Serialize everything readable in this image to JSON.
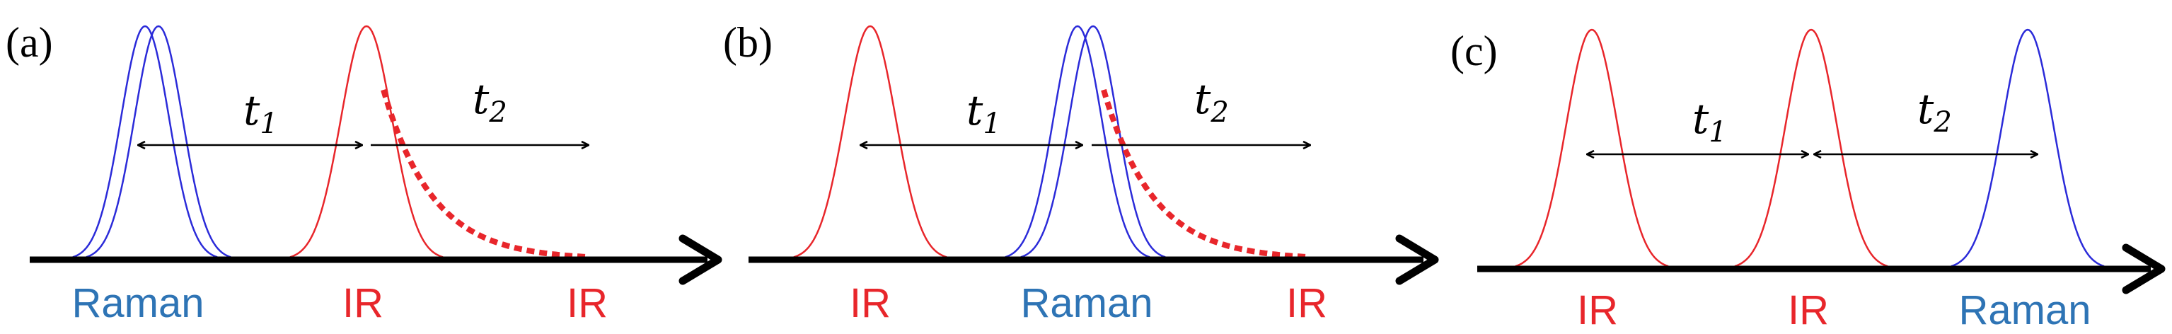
{
  "colors": {
    "raman": "#2b2bd9",
    "ir": "#e8262b",
    "raman_text": "#2e74b5",
    "ir_text": "#e8262b",
    "axis": "#000000"
  },
  "panels": [
    {
      "label": "(a)",
      "t1": {
        "main": "t",
        "sub": "1"
      },
      "t2": {
        "main": "t",
        "sub": "2"
      },
      "pulse_labels": [
        {
          "text": "Raman",
          "color": "raman_text"
        },
        {
          "text": "IR",
          "color": "ir_text"
        },
        {
          "text": "IR",
          "color": "ir_text"
        }
      ]
    },
    {
      "label": "(b)",
      "t1": {
        "main": "t",
        "sub": "1"
      },
      "t2": {
        "main": "t",
        "sub": "2"
      },
      "pulse_labels": [
        {
          "text": "IR",
          "color": "ir_text"
        },
        {
          "text": "Raman",
          "color": "raman_text"
        },
        {
          "text": "IR",
          "color": "ir_text"
        }
      ]
    },
    {
      "label": "(c)",
      "t1": {
        "main": "t",
        "sub": "1"
      },
      "t2": {
        "main": "t",
        "sub": "2"
      },
      "pulse_labels": [
        {
          "text": "IR",
          "color": "ir_text"
        },
        {
          "text": "IR",
          "color": "ir_text"
        },
        {
          "text": "Raman",
          "color": "raman_text"
        }
      ]
    }
  ]
}
